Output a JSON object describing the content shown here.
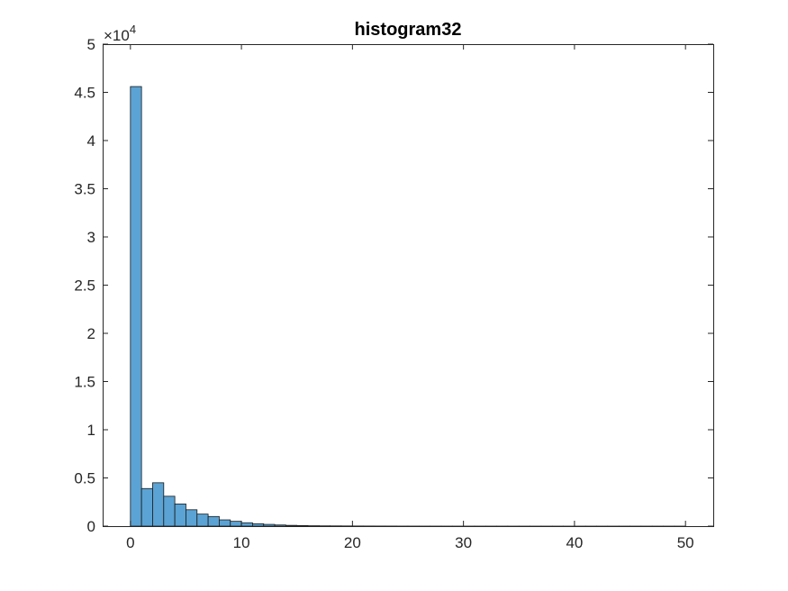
{
  "chart_data": {
    "type": "bar",
    "title": "histogram32",
    "xlabel": "",
    "ylabel": "",
    "y_exponent_label": {
      "base": "×10",
      "exponent": "4"
    },
    "xlim": [
      -2.5,
      52.5
    ],
    "ylim": [
      0,
      50000
    ],
    "x_ticks": [
      0,
      10,
      20,
      30,
      40,
      50
    ],
    "x_tick_labels": [
      "0",
      "10",
      "20",
      "30",
      "40",
      "50"
    ],
    "y_ticks": [
      0,
      5000,
      10000,
      15000,
      20000,
      25000,
      30000,
      35000,
      40000,
      45000,
      50000
    ],
    "y_tick_labels": [
      "0",
      "0.5",
      "1",
      "1.5",
      "2",
      "2.5",
      "3",
      "3.5",
      "4",
      "4.5",
      "5"
    ],
    "bin_edges": [
      0,
      1,
      2,
      3,
      4,
      5,
      6,
      7,
      8,
      9,
      10,
      11,
      12,
      13,
      14,
      15,
      16,
      17,
      18,
      19,
      20,
      21,
      22,
      23,
      24,
      25,
      26,
      27,
      28,
      29,
      30,
      31,
      32,
      33,
      34,
      35,
      36,
      37,
      38,
      39,
      40,
      41,
      42,
      43,
      44,
      45,
      46,
      47,
      48,
      49,
      50
    ],
    "values": [
      45600,
      3900,
      4500,
      3100,
      2300,
      1700,
      1250,
      1000,
      650,
      500,
      350,
      250,
      180,
      120,
      80,
      60,
      40,
      30,
      25,
      20,
      15,
      12,
      10,
      8,
      6,
      5,
      4,
      4,
      3,
      3,
      2,
      2,
      2,
      2,
      1,
      1,
      1,
      1,
      1,
      1,
      1,
      1,
      1,
      1,
      1,
      1,
      1,
      1,
      1,
      1
    ],
    "bar_color": "#4DBEEE",
    "bar_fill": "#5BA3D4",
    "bar_edge": "#1a1a1a",
    "grid": false,
    "box": true
  }
}
